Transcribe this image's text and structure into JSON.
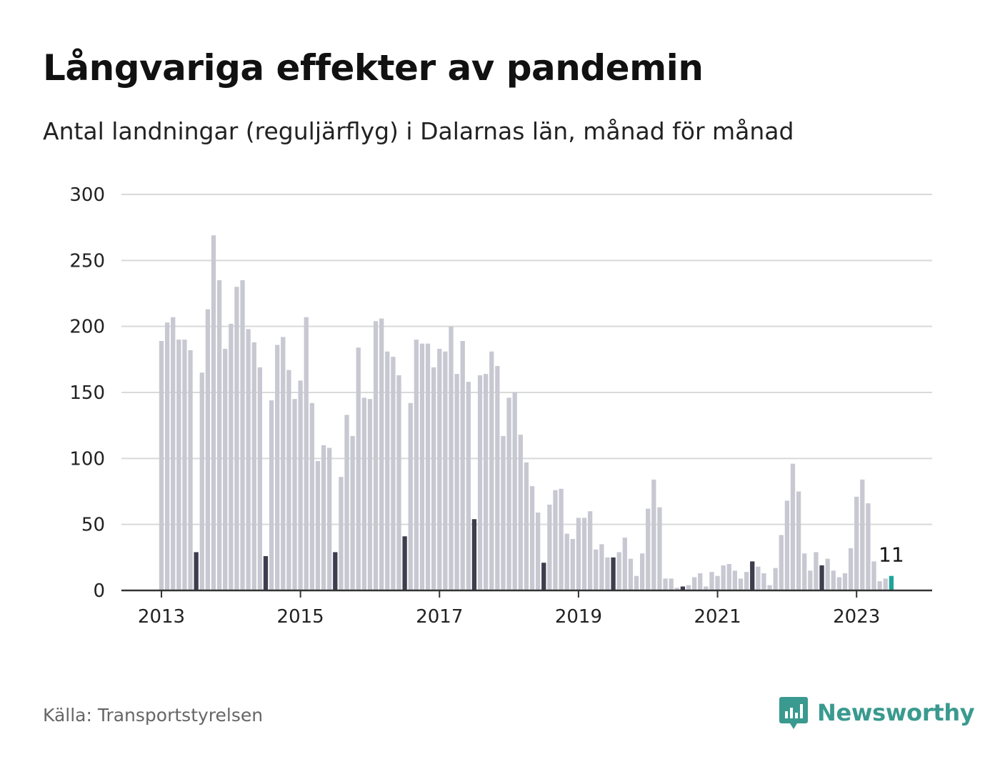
{
  "title": "Långvariga effekter av pandemin",
  "subtitle": "Antal landningar (reguljärflyg) i Dalarnas län, månad för månad",
  "source": "Källa: Transportstyrelsen",
  "brand": "Newsworthy",
  "colors": {
    "bar": "#c8c8d2",
    "bar_july": "#3d3d4e",
    "bar_latest": "#20a39a",
    "grid": "#d9d9d9",
    "axis": "#333333",
    "brand": "#3a9a8f"
  },
  "chart_data": {
    "type": "bar",
    "ylim": [
      0,
      300
    ],
    "yticks": [
      0,
      50,
      100,
      150,
      200,
      250,
      300
    ],
    "xticks": [
      "2013",
      "2015",
      "2017",
      "2019",
      "2021",
      "2023"
    ],
    "start": "2013-01",
    "end": "2023-07",
    "highlight_month": "July",
    "latest_label": "11",
    "values": [
      189,
      203,
      207,
      190,
      190,
      182,
      29,
      165,
      213,
      269,
      235,
      183,
      202,
      230,
      235,
      198,
      188,
      169,
      26,
      144,
      186,
      192,
      167,
      145,
      159,
      207,
      142,
      98,
      110,
      108,
      29,
      86,
      133,
      117,
      184,
      146,
      145,
      204,
      206,
      181,
      177,
      163,
      41,
      142,
      190,
      187,
      187,
      169,
      183,
      181,
      200,
      164,
      189,
      158,
      54,
      163,
      164,
      181,
      170,
      117,
      146,
      150,
      118,
      97,
      79,
      59,
      21,
      65,
      76,
      77,
      43,
      39,
      55,
      55,
      60,
      31,
      35,
      25,
      25,
      29,
      40,
      24,
      11,
      28,
      62,
      84,
      63,
      9,
      9,
      2,
      3,
      4,
      10,
      13,
      3,
      14,
      11,
      19,
      20,
      15,
      9,
      14,
      22,
      18,
      13,
      4,
      17,
      42,
      68,
      96,
      75,
      28,
      15,
      29,
      19,
      24,
      15,
      10,
      13,
      32,
      71,
      84,
      66,
      22,
      7,
      9,
      11
    ]
  }
}
